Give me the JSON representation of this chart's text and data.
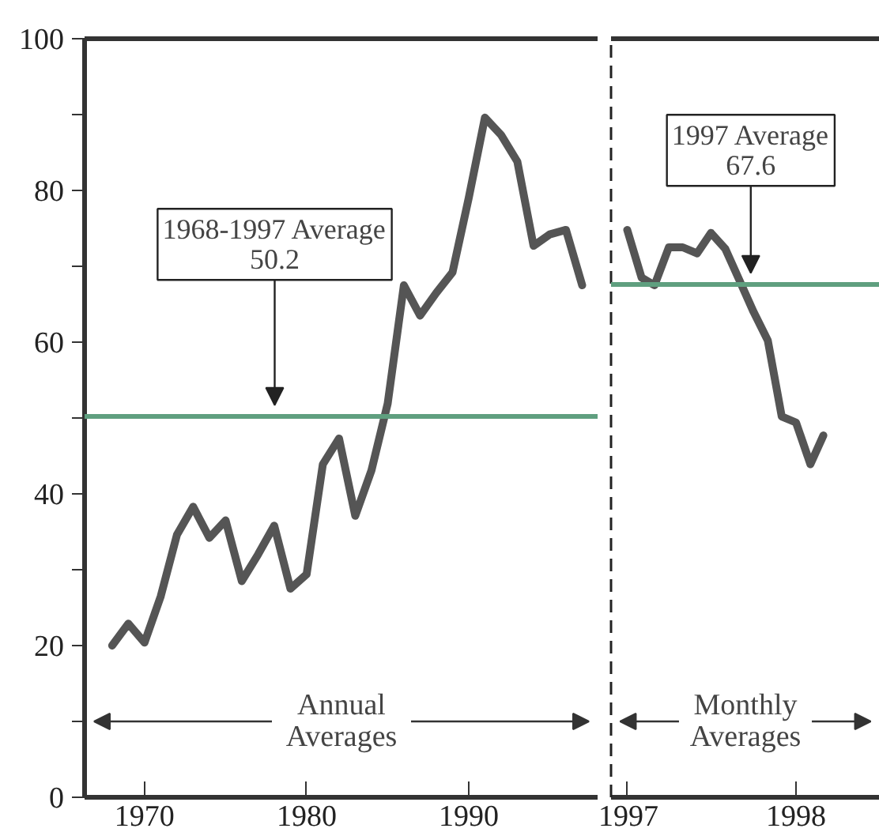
{
  "chart_data": [
    {
      "type": "line",
      "x": [
        1968,
        1969,
        1970,
        1971,
        1972,
        1973,
        1974,
        1975,
        1976,
        1977,
        1978,
        1979,
        1980,
        1981,
        1982,
        1983,
        1984,
        1985,
        1986,
        1987,
        1988,
        1989,
        1990,
        1991,
        1992,
        1993,
        1994,
        1995,
        1996,
        1997
      ],
      "series": [
        {
          "color": "#555555",
          "values": [
            20.0,
            22.9,
            20.4,
            26.5,
            34.6,
            38.3,
            34.2,
            36.5,
            28.5,
            32.0,
            35.8,
            27.5,
            29.4,
            43.9,
            47.3,
            37.1,
            43.1,
            51.9,
            67.5,
            63.5,
            66.5,
            69.2,
            79.0,
            89.6,
            87.3,
            83.8,
            72.7,
            74.2,
            74.8,
            67.5
          ]
        }
      ],
      "xlim": [
        1966.3,
        1998.0
      ],
      "xticks": [
        1970,
        1980,
        1990
      ],
      "ylim": [
        0,
        100
      ],
      "yticks": [
        0,
        {
          "value": 10,
          "label": null
        },
        20,
        {
          "value": 30,
          "label": null
        },
        40,
        {
          "value": 50,
          "label": null
        },
        60,
        {
          "value": 70,
          "label": null
        },
        80,
        {
          "value": 90,
          "label": null
        },
        100
      ],
      "ref_lines": [
        {
          "axis": "y",
          "value": 50.2,
          "label": "1968-1997 Average\n50.2",
          "color": "#5f9f7f"
        }
      ],
      "annotations": [
        "Annual\nAverages"
      ],
      "grid": false
    },
    {
      "type": "line",
      "x": [
        "1997-01",
        "1997-02",
        "1997-03",
        "1997-04",
        "1997-05",
        "1997-06",
        "1997-07",
        "1997-08",
        "1997-09",
        "1997-10",
        "1997-11",
        "1997-12",
        "1998-01",
        "1998-02",
        "1998-03"
      ],
      "series": [
        {
          "color": "#555555",
          "values": [
            74.8,
            68.5,
            67.5,
            72.5,
            72.5,
            71.7,
            74.4,
            72.3,
            68.1,
            64.0,
            60.2,
            50.2,
            49.4,
            43.9,
            47.7
          ]
        }
      ],
      "xlim": [
        "1996-11-27",
        "1998-07-01"
      ],
      "xticks": [
        "1997",
        "1998"
      ],
      "ylim": [
        0,
        100
      ],
      "tick_labels": "x",
      "ref_lines": [
        {
          "axis": "y",
          "value": 67.6,
          "label": "1997 Average\n67.6",
          "color": "#5f9f7f"
        }
      ],
      "annotations": [
        "Monthly\nAverages"
      ],
      "grid": false
    }
  ]
}
